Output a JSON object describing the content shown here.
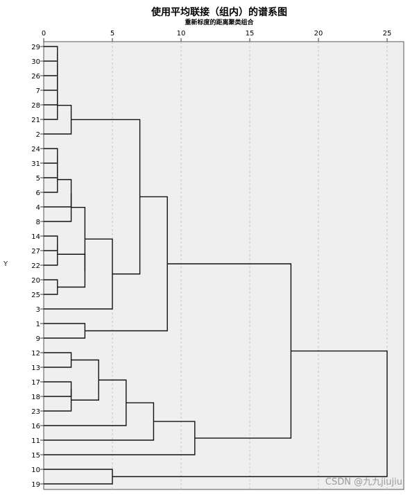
{
  "chart_data": {
    "type": "dendrogram",
    "title": "使用平均联接（组内）的谱系图",
    "subtitle": "重新标度的距离聚类组合",
    "ylabel": "Y",
    "xlim": [
      0,
      26
    ],
    "xticks": [
      0,
      5,
      10,
      15,
      20,
      25
    ],
    "grid": true,
    "leaves": [
      "29",
      "30",
      "26",
      "7",
      "28",
      "21",
      "2",
      "24",
      "31",
      "5",
      "6",
      "4",
      "8",
      "14",
      "27",
      "22",
      "20",
      "25",
      "3",
      "1",
      "9",
      "12",
      "13",
      "17",
      "18",
      "23",
      "16",
      "11",
      "15",
      "10",
      "19"
    ],
    "merges": [
      {
        "left": "L:29",
        "right": "L:30",
        "height": 1
      },
      {
        "left": "M:0",
        "right": "L:26",
        "height": 1
      },
      {
        "left": "M:1",
        "right": "L:7",
        "height": 1
      },
      {
        "left": "M:2",
        "right": "L:28",
        "height": 1
      },
      {
        "left": "M:3",
        "right": "L:21",
        "height": 1
      },
      {
        "left": "M:4",
        "right": "L:2",
        "height": 2
      },
      {
        "left": "L:24",
        "right": "L:31",
        "height": 1
      },
      {
        "left": "M:6",
        "right": "L:5",
        "height": 1
      },
      {
        "left": "M:7",
        "right": "L:6",
        "height": 1
      },
      {
        "left": "M:8",
        "right": "L:4",
        "height": 2
      },
      {
        "left": "M:9",
        "right": "L:8",
        "height": 2
      },
      {
        "left": "L:14",
        "right": "L:27",
        "height": 1
      },
      {
        "left": "M:11",
        "right": "L:22",
        "height": 1
      },
      {
        "left": "L:20",
        "right": "L:25",
        "height": 1
      },
      {
        "left": "M:12",
        "right": "M:13",
        "height": 3
      },
      {
        "left": "M:10",
        "right": "M:14",
        "height": 3
      },
      {
        "left": "M:15",
        "right": "L:3",
        "height": 5
      },
      {
        "left": "M:5",
        "right": "M:16",
        "height": 7
      },
      {
        "left": "L:1",
        "right": "L:9",
        "height": 3
      },
      {
        "left": "M:17",
        "right": "M:18",
        "height": 9
      },
      {
        "left": "L:12",
        "right": "L:13",
        "height": 2
      },
      {
        "left": "L:17",
        "right": "L:18",
        "height": 2
      },
      {
        "left": "M:21",
        "right": "L:23",
        "height": 2
      },
      {
        "left": "M:20",
        "right": "M:22",
        "height": 4
      },
      {
        "left": "M:23",
        "right": "L:16",
        "height": 6
      },
      {
        "left": "M:24",
        "right": "L:11",
        "height": 8
      },
      {
        "left": "M:25",
        "right": "L:15",
        "height": 11
      },
      {
        "left": "M:19",
        "right": "M:26",
        "height": 18
      },
      {
        "left": "L:10",
        "right": "L:19",
        "height": 5
      },
      {
        "left": "M:27",
        "right": "M:28",
        "height": 25
      }
    ]
  },
  "watermark": "CSDN @九九jiujiu"
}
